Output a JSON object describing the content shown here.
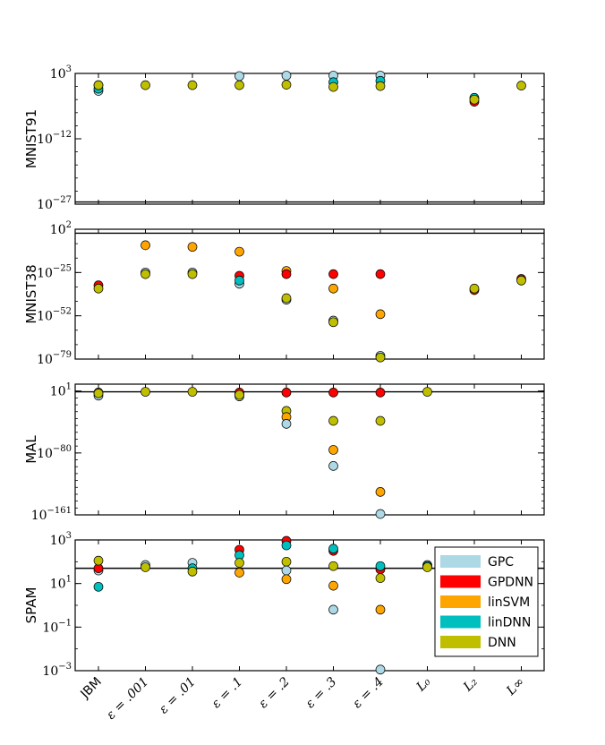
{
  "chart_data": {
    "type": "scatter",
    "categories": [
      "JBM",
      "ε = .001",
      "ε = .01",
      "ε = .1",
      "ε = .2",
      "ε = .3",
      "ε = .4",
      "L₀",
      "L₂",
      "L∞"
    ],
    "series_names": [
      "GPC",
      "GPDNN",
      "linSVM",
      "linDNN",
      "DNN"
    ],
    "colors": {
      "GPC": "#add8e6",
      "GPDNN": "#ff0000",
      "linSVM": "#ffa500",
      "linDNN": "#00bfbf",
      "DNN": "#bfbf00"
    },
    "legend_position": "upper-right of bottom panel",
    "panels": [
      {
        "ylabel": "MNIST91",
        "yscale": "log",
        "ylim_exp": [
          -27,
          3
        ],
        "yticks_exp": [
          3,
          -12,
          -27
        ],
        "ytick_labels": [
          "10^3",
          "10^-12",
          "10^-27"
        ],
        "hline_exp": -26.5,
        "points": [
          {
            "cat": 0,
            "series": "GPC",
            "exp": -1.0
          },
          {
            "cat": 0,
            "series": "linDNN",
            "exp": -0.5
          },
          {
            "cat": 0,
            "series": "GPDNN",
            "exp": 0.3
          },
          {
            "cat": 0,
            "series": "DNN",
            "exp": 0.3
          },
          {
            "cat": 1,
            "series": "DNN",
            "exp": 0.3
          },
          {
            "cat": 2,
            "series": "DNN",
            "exp": 0.3
          },
          {
            "cat": 3,
            "series": "GPC",
            "exp": 2.4
          },
          {
            "cat": 3,
            "series": "DNN",
            "exp": 0.3
          },
          {
            "cat": 4,
            "series": "GPC",
            "exp": 2.5
          },
          {
            "cat": 4,
            "series": "DNN",
            "exp": 0.4
          },
          {
            "cat": 5,
            "series": "GPC",
            "exp": 2.5
          },
          {
            "cat": 5,
            "series": "linDNN",
            "exp": 1.0
          },
          {
            "cat": 5,
            "series": "DNN",
            "exp": -0.1
          },
          {
            "cat": 6,
            "series": "GPC",
            "exp": 2.5
          },
          {
            "cat": 6,
            "series": "linDNN",
            "exp": 1.3
          },
          {
            "cat": 6,
            "series": "DNN",
            "exp": 0.1
          },
          {
            "cat": 8,
            "series": "GPDNN",
            "exp": -3.5
          },
          {
            "cat": 8,
            "series": "linDNN",
            "exp": -2.6
          },
          {
            "cat": 8,
            "series": "DNN",
            "exp": -3.0
          },
          {
            "cat": 9,
            "series": "DNN",
            "exp": 0.2
          }
        ]
      },
      {
        "ylabel": "MNIST38",
        "yscale": "log",
        "ylim_exp": [
          -79,
          2
        ],
        "yticks_exp": [
          2,
          -25,
          -52,
          -79
        ],
        "ytick_labels": [
          "10^2",
          "10^-25",
          "10^-52",
          "10^-79"
        ],
        "hline_exp": -0.5,
        "points": [
          {
            "cat": 0,
            "series": "GPDNN",
            "exp": -33
          },
          {
            "cat": 0,
            "series": "DNN",
            "exp": -35
          },
          {
            "cat": 1,
            "series": "linSVM",
            "exp": -8
          },
          {
            "cat": 1,
            "series": "GPC",
            "exp": -25
          },
          {
            "cat": 1,
            "series": "DNN",
            "exp": -26
          },
          {
            "cat": 2,
            "series": "linSVM",
            "exp": -9
          },
          {
            "cat": 2,
            "series": "GPC",
            "exp": -25
          },
          {
            "cat": 2,
            "series": "DNN",
            "exp": -26
          },
          {
            "cat": 3,
            "series": "linSVM",
            "exp": -12
          },
          {
            "cat": 3,
            "series": "GPDNN",
            "exp": -27
          },
          {
            "cat": 3,
            "series": "GPC",
            "exp": -32
          },
          {
            "cat": 3,
            "series": "linDNN",
            "exp": -30
          },
          {
            "cat": 4,
            "series": "linSVM",
            "exp": -24
          },
          {
            "cat": 4,
            "series": "GPDNN",
            "exp": -26
          },
          {
            "cat": 4,
            "series": "GPC",
            "exp": -42
          },
          {
            "cat": 4,
            "series": "DNN",
            "exp": -41
          },
          {
            "cat": 5,
            "series": "GPDNN",
            "exp": -26
          },
          {
            "cat": 5,
            "series": "linSVM",
            "exp": -35
          },
          {
            "cat": 5,
            "series": "GPC",
            "exp": -55
          },
          {
            "cat": 5,
            "series": "DNN",
            "exp": -56
          },
          {
            "cat": 6,
            "series": "GPDNN",
            "exp": -26
          },
          {
            "cat": 6,
            "series": "linSVM",
            "exp": -51
          },
          {
            "cat": 6,
            "series": "GPC",
            "exp": -77
          },
          {
            "cat": 6,
            "series": "DNN",
            "exp": -78
          },
          {
            "cat": 8,
            "series": "GPDNN",
            "exp": -36
          },
          {
            "cat": 8,
            "series": "DNN",
            "exp": -35
          },
          {
            "cat": 9,
            "series": "GPDNN",
            "exp": -29
          },
          {
            "cat": 9,
            "series": "DNN",
            "exp": -30
          }
        ]
      },
      {
        "ylabel": "MAL",
        "yscale": "log",
        "ylim_exp": [
          -161,
          10
        ],
        "yticks_exp": [
          1,
          -80,
          -161
        ],
        "ytick_labels": [
          "10^1",
          "10^-80",
          "10^-161"
        ],
        "hline_exp": 0,
        "points": [
          {
            "cat": 0,
            "series": "GPC",
            "exp": -5
          },
          {
            "cat": 0,
            "series": "GPDNN",
            "exp": -1
          },
          {
            "cat": 0,
            "series": "DNN",
            "exp": -2
          },
          {
            "cat": 1,
            "series": "DNN",
            "exp": 0
          },
          {
            "cat": 2,
            "series": "DNN",
            "exp": 0
          },
          {
            "cat": 3,
            "series": "GPC",
            "exp": -6
          },
          {
            "cat": 3,
            "series": "linSVM",
            "exp": -3
          },
          {
            "cat": 3,
            "series": "GPDNN",
            "exp": -1
          },
          {
            "cat": 3,
            "series": "DNN",
            "exp": -4
          },
          {
            "cat": 4,
            "series": "GPDNN",
            "exp": -1
          },
          {
            "cat": 4,
            "series": "DNN",
            "exp": -25
          },
          {
            "cat": 4,
            "series": "linSVM",
            "exp": -33
          },
          {
            "cat": 4,
            "series": "GPC",
            "exp": -42
          },
          {
            "cat": 5,
            "series": "GPDNN",
            "exp": -1
          },
          {
            "cat": 5,
            "series": "DNN",
            "exp": -38
          },
          {
            "cat": 5,
            "series": "linSVM",
            "exp": -76
          },
          {
            "cat": 5,
            "series": "GPC",
            "exp": -97
          },
          {
            "cat": 6,
            "series": "GPDNN",
            "exp": -1
          },
          {
            "cat": 6,
            "series": "DNN",
            "exp": -38
          },
          {
            "cat": 6,
            "series": "linSVM",
            "exp": -131
          },
          {
            "cat": 6,
            "series": "GPC",
            "exp": -160
          },
          {
            "cat": 7,
            "series": "DNN",
            "exp": 0
          }
        ]
      },
      {
        "ylabel": "SPAM",
        "yscale": "log",
        "ylim_exp": [
          -3,
          3
        ],
        "yticks_exp": [
          3,
          1,
          -1,
          -3
        ],
        "ytick_labels": [
          "10^3",
          "10^1",
          "10^-1",
          "10^-3"
        ],
        "hline_exp": 1.7,
        "points": [
          {
            "cat": 0,
            "series": "GPC",
            "exp": 1.6
          },
          {
            "cat": 0,
            "series": "GPDNN",
            "exp": 1.7
          },
          {
            "cat": 0,
            "series": "DNN",
            "exp": 2.05
          },
          {
            "cat": 0,
            "series": "linDNN",
            "exp": 0.85
          },
          {
            "cat": 1,
            "series": "GPC",
            "exp": 1.85
          },
          {
            "cat": 1,
            "series": "DNN",
            "exp": 1.75
          },
          {
            "cat": 2,
            "series": "GPC",
            "exp": 1.95
          },
          {
            "cat": 2,
            "series": "linDNN",
            "exp": 1.7
          },
          {
            "cat": 2,
            "series": "DNN",
            "exp": 1.55
          },
          {
            "cat": 3,
            "series": "GPDNN",
            "exp": 2.55
          },
          {
            "cat": 3,
            "series": "linDNN",
            "exp": 2.3
          },
          {
            "cat": 3,
            "series": "DNN",
            "exp": 1.95
          },
          {
            "cat": 3,
            "series": "linSVM",
            "exp": 1.5
          },
          {
            "cat": 4,
            "series": "GPDNN",
            "exp": 3.0
          },
          {
            "cat": 4,
            "series": "linDNN",
            "exp": 2.75
          },
          {
            "cat": 4,
            "series": "DNN",
            "exp": 2.0
          },
          {
            "cat": 4,
            "series": "GPC",
            "exp": 1.6
          },
          {
            "cat": 4,
            "series": "linSVM",
            "exp": 1.2
          },
          {
            "cat": 5,
            "series": "GPDNN",
            "exp": 2.5
          },
          {
            "cat": 5,
            "series": "linDNN",
            "exp": 2.6
          },
          {
            "cat": 5,
            "series": "DNN",
            "exp": 1.8
          },
          {
            "cat": 5,
            "series": "linSVM",
            "exp": 0.9
          },
          {
            "cat": 5,
            "series": "GPC",
            "exp": -0.2
          },
          {
            "cat": 6,
            "series": "GPDNN",
            "exp": 1.65
          },
          {
            "cat": 6,
            "series": "linDNN",
            "exp": 1.8
          },
          {
            "cat": 6,
            "series": "DNN",
            "exp": 1.25
          },
          {
            "cat": 6,
            "series": "linSVM",
            "exp": -0.2
          },
          {
            "cat": 6,
            "series": "GPC",
            "exp": -2.95
          },
          {
            "cat": 7,
            "series": "GPC",
            "exp": 1.85
          },
          {
            "cat": 7,
            "series": "linDNN",
            "exp": 1.8
          },
          {
            "cat": 7,
            "series": "DNN",
            "exp": 1.75
          }
        ]
      }
    ]
  }
}
